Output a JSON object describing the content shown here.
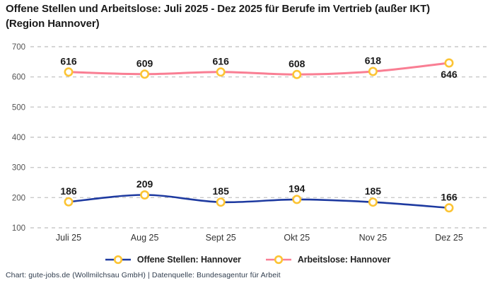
{
  "title": "Offene Stellen und Arbeitslose: Juli 2025 - Dez 2025 für Berufe im Vertrieb (außer IKT) (Region Hannover)",
  "footer": "Chart: gute-jobs.de (Wollmilchsau GmbH) | Datenquelle: Bundesagentur für Arbeit",
  "colors": {
    "open_positions_line": "#1e3aa0",
    "unemployed_line": "#f97e93",
    "marker_stroke": "#fcc434",
    "marker_fill": "#ffffff",
    "gridline": "#c9c9c9",
    "y_tick_label": "#555555",
    "x_tick_label": "#333333",
    "value_label": "#1a1a1a",
    "title_text": "#1a1a1a",
    "footer_text": "#2f3c4d"
  },
  "chart_data": {
    "type": "line",
    "categories": [
      "Juli 25",
      "Aug 25",
      "Sept 25",
      "Okt 25",
      "Nov 25",
      "Dez 25"
    ],
    "series": [
      {
        "name": "Offene Stellen: Hannover",
        "color": "#1e3aa0",
        "values": [
          186,
          209,
          185,
          194,
          185,
          166
        ],
        "label_positions": [
          "above",
          "above",
          "above",
          "above",
          "above",
          "above"
        ]
      },
      {
        "name": "Arbeitslose: Hannover",
        "color": "#f97e93",
        "values": [
          616,
          609,
          616,
          608,
          618,
          646
        ],
        "label_positions": [
          "above",
          "above",
          "above",
          "above",
          "above",
          "below"
        ]
      }
    ],
    "marker": {
      "fill": "#ffffff",
      "stroke": "#fcc434"
    },
    "title": "Offene Stellen und Arbeitslose: Juli 2025 - Dez 2025 für Berufe im Vertrieb (außer IKT) (Region Hannover)",
    "xlabel": "",
    "ylabel": "",
    "ylim": [
      100,
      700
    ],
    "yticks": [
      100,
      200,
      300,
      400,
      500,
      600,
      700
    ],
    "grid": "horizontal-dashed",
    "legend_position": "bottom",
    "point_labels_shown": true
  }
}
